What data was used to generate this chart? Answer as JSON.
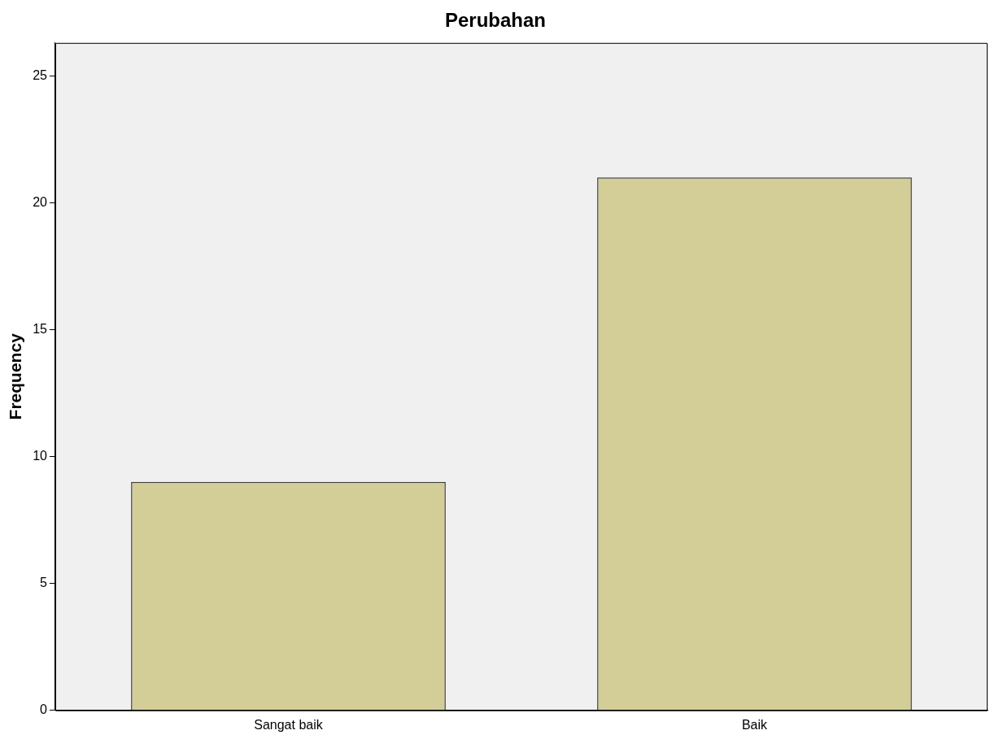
{
  "chart_data": {
    "type": "bar",
    "title": "Perubahan",
    "ylabel": "Frequency",
    "categories": [
      "Sangat baik",
      "Baik"
    ],
    "values": [
      9,
      21
    ],
    "color": "#d3ce97",
    "ylim": [
      0,
      26.3
    ],
    "yticks": [
      0,
      5,
      10,
      15,
      20,
      25
    ],
    "grid": false,
    "legend": false
  }
}
